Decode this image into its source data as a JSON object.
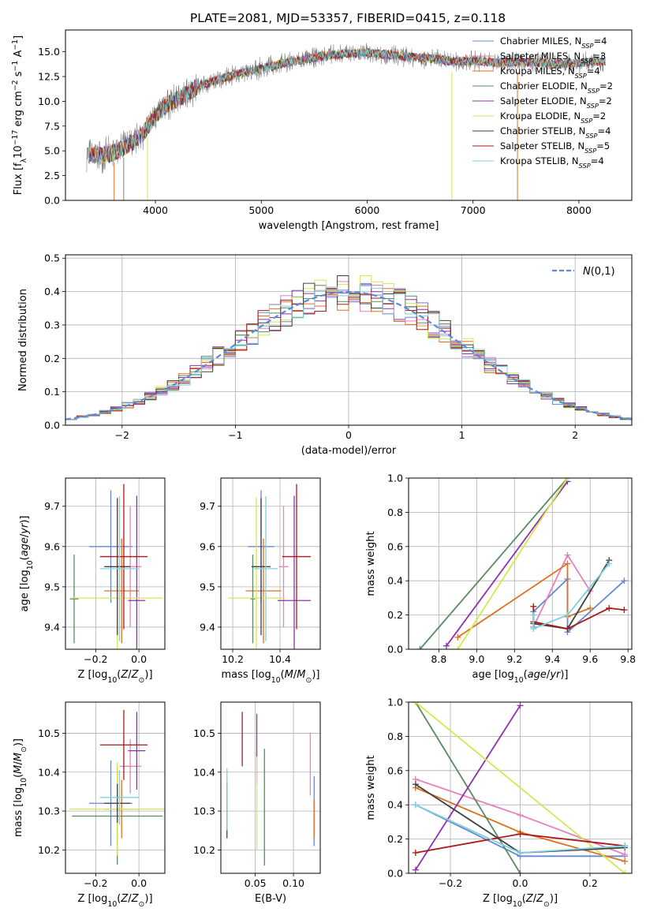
{
  "figure_title": "PLATE=2081, MJD=53357, FIBERID=0415, z=0.118",
  "colors": {
    "Chabrier MILES": "#6688d4",
    "Salpeter MILES": "#e87fbf",
    "Kroupa MILES": "#e07020",
    "Chabrier ELODIE": "#5a8a60",
    "Salpeter ELODIE": "#9030b0",
    "Kroupa ELODIE": "#d4e850",
    "Chabrier STELIB": "#404040",
    "Salpeter STELIB": "#aa1818",
    "Kroupa STELIB": "#7fd0d8",
    "data": "#808080",
    "normal": "#5b8bd6"
  },
  "chart_data": [
    {
      "id": "spectrum",
      "type": "line",
      "xlabel": "wavelength [Angstrom, rest frame]",
      "ylabel": "Flux [f_λ 10^-17 erg cm^-2 s^-1 A^-1]",
      "xlim": [
        3150,
        8500
      ],
      "ylim": [
        0,
        17.2
      ],
      "xticks": [
        4000,
        5000,
        6000,
        7000,
        8000
      ],
      "yticks": [
        0.0,
        2.5,
        5.0,
        7.5,
        10.0,
        12.5,
        15.0
      ],
      "legend_position": "upper-right",
      "continuum": {
        "x": [
          3350,
          3500,
          3650,
          3800,
          3900,
          4000,
          4100,
          4200,
          4300,
          4400,
          4600,
          4800,
          5000,
          5200,
          5400,
          5600,
          5800,
          6000,
          6200,
          6400,
          6600,
          6800,
          7000,
          7200,
          7400,
          7600,
          7800,
          8000,
          8200
        ],
        "y": [
          4.7,
          4.5,
          5.0,
          6.0,
          7.0,
          8.6,
          9.6,
          10.2,
          10.8,
          11.5,
          12.2,
          12.8,
          13.3,
          13.8,
          14.2,
          14.6,
          14.8,
          14.9,
          14.7,
          14.5,
          14.3,
          14.0,
          14.1,
          13.9,
          14.0,
          13.9,
          13.8,
          13.9,
          14.0
        ]
      },
      "legend": [
        {
          "model": "Chabrier MILES",
          "label": "Chabrier MILES, N",
          "sub": "SSP",
          "eq": "=4"
        },
        {
          "model": "Salpeter MILES",
          "label": "Salpeter MILES, N",
          "sub": "SSP",
          "eq": "=3"
        },
        {
          "model": "Kroupa MILES",
          "label": "Kroupa MILES, N",
          "sub": "SSP",
          "eq": "=4"
        },
        {
          "model": "Chabrier ELODIE",
          "label": "Chabrier ELODIE, N",
          "sub": "SSP",
          "eq": "=2"
        },
        {
          "model": "Salpeter ELODIE",
          "label": "Salpeter ELODIE, N",
          "sub": "SSP",
          "eq": "=2"
        },
        {
          "model": "Kroupa ELODIE",
          "label": "Kroupa ELODIE, N",
          "sub": "SSP",
          "eq": "=2"
        },
        {
          "model": "Chabrier STELIB",
          "label": "Chabrier STELIB, N",
          "sub": "SSP",
          "eq": "=4"
        },
        {
          "model": "Salpeter STELIB",
          "label": "Salpeter STELIB, N",
          "sub": "SSP",
          "eq": "=5"
        },
        {
          "model": "Kroupa STELIB",
          "label": "Kroupa STELIB, N",
          "sub": "SSP",
          "eq": "=4"
        }
      ]
    },
    {
      "id": "residuals",
      "type": "histogram",
      "xlabel": "(data-model)/error",
      "ylabel": "Normed distribution",
      "xlim": [
        -2.5,
        2.5
      ],
      "ylim": [
        0,
        0.51
      ],
      "xticks": [
        -2,
        -1,
        0,
        1,
        2
      ],
      "yticks": [
        0.0,
        0.1,
        0.2,
        0.3,
        0.4,
        0.5
      ],
      "grid": true,
      "legend_position": "upper-right",
      "legend_label": "N(0,1)",
      "bin_width": 0.1
    },
    {
      "id": "age-vs-Z",
      "type": "errorbar",
      "xlabel": "Z [log10(Z/Z_sun)]",
      "ylabel": "age [log10(age/yr)]",
      "xlim": [
        -0.34,
        0.12
      ],
      "ylim": [
        9.345,
        9.77
      ],
      "xticks": [
        -0.2,
        0.0
      ],
      "yticks": [
        9.4,
        9.5,
        9.6,
        9.7
      ],
      "grid": true,
      "points": [
        {
          "model": "Chabrier MILES",
          "x": -0.13,
          "xerr": 0.1,
          "y": 9.6,
          "yerr": 0.14
        },
        {
          "model": "Salpeter MILES",
          "x": -0.04,
          "xerr": 0.05,
          "y": 9.55,
          "yerr": 0.15
        },
        {
          "model": "Kroupa MILES",
          "x": -0.08,
          "xerr": 0.08,
          "y": 9.49,
          "yerr": 0.13
        },
        {
          "model": "Chabrier ELODIE",
          "x": -0.3,
          "xerr": 0.02,
          "y": 9.47,
          "yerr": 0.11
        },
        {
          "model": "Salpeter ELODIE",
          "x": -0.01,
          "xerr": 0.04,
          "y": 9.466,
          "yerr": 0.26
        },
        {
          "model": "Kroupa ELODIE",
          "x": -0.1,
          "xerr": 0.21,
          "y": 9.472,
          "yerr": 0.25
        },
        {
          "model": "Chabrier STELIB",
          "x": -0.1,
          "xerr": 0.06,
          "y": 9.55,
          "yerr": 0.17
        },
        {
          "model": "Salpeter STELIB",
          "x": -0.07,
          "xerr": 0.11,
          "y": 9.575,
          "yerr": 0.18
        },
        {
          "model": "Kroupa STELIB",
          "x": -0.09,
          "xerr": 0.09,
          "y": 9.545,
          "yerr": 0.18
        }
      ]
    },
    {
      "id": "age-vs-mass",
      "type": "errorbar",
      "xlabel": "mass [log10(M/M_sun)]",
      "ylabel": "",
      "xlim": [
        10.15,
        10.57
      ],
      "ylim": [
        9.345,
        9.77
      ],
      "xticks": [
        10.2,
        10.4
      ],
      "yticks": [
        9.4,
        9.5,
        9.6,
        9.7
      ],
      "grid": true,
      "points": [
        {
          "model": "Chabrier MILES",
          "x": 10.32,
          "xerr": 0.055,
          "y": 9.6,
          "yerr": 0.14
        },
        {
          "model": "Salpeter MILES",
          "x": 10.415,
          "xerr": 0.02,
          "y": 9.55,
          "yerr": 0.15
        },
        {
          "model": "Kroupa MILES",
          "x": 10.33,
          "xerr": 0.075,
          "y": 9.49,
          "yerr": 0.13
        },
        {
          "model": "Chabrier ELODIE",
          "x": 10.285,
          "xerr": 0.01,
          "y": 9.47,
          "yerr": 0.11
        },
        {
          "model": "Salpeter ELODIE",
          "x": 10.46,
          "xerr": 0.07,
          "y": 9.466,
          "yerr": 0.26
        },
        {
          "model": "Kroupa ELODIE",
          "x": 10.3,
          "xerr": 0.12,
          "y": 9.472,
          "yerr": 0.25
        },
        {
          "model": "Chabrier STELIB",
          "x": 10.32,
          "xerr": 0.04,
          "y": 9.55,
          "yerr": 0.17
        },
        {
          "model": "Salpeter STELIB",
          "x": 10.47,
          "xerr": 0.06,
          "y": 9.575,
          "yerr": 0.18
        },
        {
          "model": "Kroupa STELIB",
          "x": 10.34,
          "xerr": 0.05,
          "y": 9.545,
          "yerr": 0.18
        }
      ]
    },
    {
      "id": "weight-vs-age",
      "type": "line",
      "xlabel": "age [log10(age/yr)]",
      "ylabel": "mass weight",
      "xlim": [
        8.64,
        9.82
      ],
      "ylim": [
        0,
        1.0
      ],
      "xticks": [
        8.8,
        9.0,
        9.2,
        9.4,
        9.6,
        9.8
      ],
      "yticks": [
        0.0,
        0.2,
        0.4,
        0.6,
        0.8,
        1.0
      ],
      "grid": true,
      "series": [
        {
          "model": "Chabrier MILES",
          "x": [
            9.3,
            9.3,
            9.48,
            9.48,
            9.78
          ],
          "y": [
            0.13,
            0.22,
            0.41,
            0.1,
            0.4
          ]
        },
        {
          "model": "Salpeter MILES",
          "x": [
            9.3,
            9.48,
            9.6
          ],
          "y": [
            0.13,
            0.55,
            0.34
          ]
        },
        {
          "model": "Kroupa MILES",
          "x": [
            8.9,
            9.48,
            9.48,
            9.6
          ],
          "y": [
            0.07,
            0.5,
            0.19,
            0.24
          ]
        },
        {
          "model": "Chabrier ELODIE",
          "x": [
            8.7,
            9.48
          ],
          "y": [
            0.0,
            1.0
          ]
        },
        {
          "model": "Salpeter ELODIE",
          "x": [
            8.84,
            9.48
          ],
          "y": [
            0.02,
            0.98
          ]
        },
        {
          "model": "Kroupa ELODIE",
          "x": [
            8.9,
            9.48
          ],
          "y": [
            0.0,
            1.0
          ]
        },
        {
          "model": "Chabrier STELIB",
          "x": [
            9.3,
            9.48,
            9.7
          ],
          "y": [
            0.15,
            0.12,
            0.52
          ]
        },
        {
          "model": "Salpeter STELIB",
          "x": [
            9.3,
            9.3,
            9.48,
            9.7,
            9.78
          ],
          "y": [
            0.25,
            0.16,
            0.12,
            0.24,
            0.23
          ]
        },
        {
          "model": "Kroupa STELIB",
          "x": [
            9.3,
            9.3,
            9.48,
            9.7
          ],
          "y": [
            0.2,
            0.12,
            0.2,
            0.5
          ]
        }
      ]
    },
    {
      "id": "mass-vs-Z",
      "type": "errorbar",
      "xlabel": "Z [log10(Z/Z_sun)]",
      "ylabel": "mass [log10(M/M_sun)]",
      "xlim": [
        -0.34,
        0.12
      ],
      "ylim": [
        10.14,
        10.58
      ],
      "xticks": [
        -0.2,
        0.0
      ],
      "yticks": [
        10.2,
        10.3,
        10.4,
        10.5
      ],
      "grid": true,
      "points": [
        {
          "model": "Chabrier MILES",
          "x": -0.13,
          "xerr": 0.1,
          "y": 10.32,
          "yerr": 0.11
        },
        {
          "model": "Salpeter MILES",
          "x": -0.04,
          "xerr": 0.05,
          "y": 10.415,
          "yerr": 0.07
        },
        {
          "model": "Kroupa MILES",
          "x": -0.08,
          "xerr": 0.08,
          "y": 10.305,
          "yerr": 0.075
        },
        {
          "model": "Chabrier ELODIE",
          "x": -0.1,
          "xerr": 0.21,
          "y": 10.287,
          "yerr": 0.125
        },
        {
          "model": "Salpeter ELODIE",
          "x": -0.01,
          "xerr": 0.04,
          "y": 10.455,
          "yerr": 0.1
        },
        {
          "model": "Kroupa ELODIE",
          "x": -0.1,
          "xerr": 0.22,
          "y": 10.305,
          "yerr": 0.12
        },
        {
          "model": "Chabrier STELIB",
          "x": -0.1,
          "xerr": 0.06,
          "y": 10.32,
          "yerr": 0.05
        },
        {
          "model": "Salpeter STELIB",
          "x": -0.07,
          "xerr": 0.11,
          "y": 10.47,
          "yerr": 0.09
        },
        {
          "model": "Kroupa STELIB",
          "x": -0.09,
          "xerr": 0.09,
          "y": 10.335,
          "yerr": 0.07
        }
      ]
    },
    {
      "id": "mass-vs-ebv",
      "type": "errorbar",
      "xlabel": "E(B-V)",
      "ylabel": "",
      "xlim": [
        0.005,
        0.135
      ],
      "ylim": [
        10.14,
        10.58
      ],
      "xticks": [
        0.05,
        0.1
      ],
      "yticks": [
        10.2,
        10.3,
        10.4,
        10.5
      ],
      "grid": true,
      "points": [
        {
          "model": "Chabrier MILES",
          "x": 0.127,
          "xerr": 0.0,
          "y": 10.3,
          "yerr": 0.09
        },
        {
          "model": "Salpeter MILES",
          "x": 0.122,
          "xerr": 0.0,
          "y": 10.42,
          "yerr": 0.08
        },
        {
          "model": "Kroupa MILES",
          "x": 0.127,
          "xerr": 0.0,
          "y": 10.28,
          "yerr": 0.05
        },
        {
          "model": "Chabrier ELODIE",
          "x": 0.062,
          "xerr": 0.0,
          "y": 10.31,
          "yerr": 0.15
        },
        {
          "model": "Salpeter ELODIE",
          "x": 0.052,
          "xerr": 0.0,
          "y": 10.46,
          "yerr": 0.09
        },
        {
          "model": "Kroupa ELODIE",
          "x": 0.052,
          "xerr": 0.0,
          "y": 10.32,
          "yerr": 0.12
        },
        {
          "model": "Chabrier STELIB",
          "x": 0.013,
          "xerr": 0.0,
          "y": 10.3,
          "yerr": 0.07
        },
        {
          "model": "Salpeter STELIB",
          "x": 0.033,
          "xerr": 0.0,
          "y": 10.485,
          "yerr": 0.07
        },
        {
          "model": "Kroupa STELIB",
          "x": 0.013,
          "xerr": 0.0,
          "y": 10.33,
          "yerr": 0.08
        }
      ]
    },
    {
      "id": "weight-vs-Z",
      "type": "line",
      "xlabel": "Z [log10(Z/Z_sun)]",
      "ylabel": "mass weight",
      "xlim": [
        -0.32,
        0.32
      ],
      "ylim": [
        0,
        1.0
      ],
      "xticks": [
        -0.2,
        0.0,
        0.2
      ],
      "yticks": [
        0.0,
        0.2,
        0.4,
        0.6,
        0.8,
        1.0
      ],
      "grid": true,
      "series": [
        {
          "model": "Chabrier MILES",
          "x": [
            -0.3,
            0.0,
            0.3
          ],
          "y": [
            0.4,
            0.1,
            0.1
          ]
        },
        {
          "model": "Salpeter MILES",
          "x": [
            -0.3,
            0.0,
            0.3
          ],
          "y": [
            0.55,
            0.34,
            0.11
          ]
        },
        {
          "model": "Kroupa MILES",
          "x": [
            -0.3,
            0.0,
            0.3
          ],
          "y": [
            0.5,
            0.24,
            0.07
          ]
        },
        {
          "model": "Chabrier ELODIE",
          "x": [
            -0.3,
            0.0
          ],
          "y": [
            1.0,
            0.0
          ]
        },
        {
          "model": "Salpeter ELODIE",
          "x": [
            -0.3,
            0.0
          ],
          "y": [
            0.02,
            0.98
          ]
        },
        {
          "model": "Kroupa ELODIE",
          "x": [
            -0.3,
            0.3
          ],
          "y": [
            1.0,
            0.0
          ]
        },
        {
          "model": "Chabrier STELIB",
          "x": [
            -0.3,
            0.0,
            0.3
          ],
          "y": [
            0.52,
            0.12,
            0.15
          ]
        },
        {
          "model": "Salpeter STELIB",
          "x": [
            -0.3,
            0.0,
            0.3
          ],
          "y": [
            0.12,
            0.23,
            0.16
          ]
        },
        {
          "model": "Kroupa STELIB",
          "x": [
            -0.3,
            0.0,
            0.3
          ],
          "y": [
            0.4,
            0.12,
            0.16
          ]
        }
      ]
    }
  ]
}
